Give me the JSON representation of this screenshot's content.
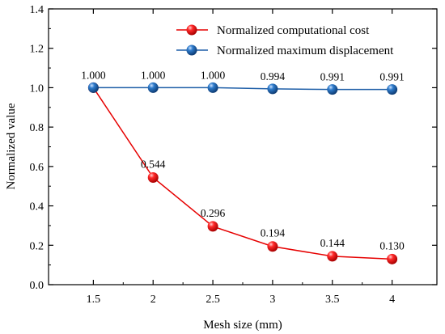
{
  "chart_data": {
    "type": "line",
    "xlabel": "Mesh size (mm)",
    "ylabel": "Normalized value",
    "xlim": [
      1.125,
      4.375
    ],
    "ylim": [
      0,
      1.4
    ],
    "xticks": [
      1.5,
      2,
      2.5,
      3,
      3.5,
      4
    ],
    "xtick_labels": [
      "1.5",
      "2",
      "2.5",
      "3",
      "3.5",
      "4"
    ],
    "yticks": [
      0,
      0.2,
      0.4,
      0.6,
      0.8,
      1.0,
      1.2,
      1.4
    ],
    "ytick_labels": [
      "0.0",
      "0.2",
      "0.4",
      "0.6",
      "0.8",
      "1.0",
      "1.2",
      "1.4"
    ],
    "legend_position": "top-right",
    "grid": false,
    "series": [
      {
        "name": "Normalized computational cost",
        "color": "#e60000",
        "marker_color": "#ff1a1a",
        "x": [
          1.5,
          2,
          2.5,
          3,
          3.5,
          4
        ],
        "values": [
          1.0,
          0.544,
          0.296,
          0.194,
          0.144,
          0.13
        ],
        "labels": [
          "0.544",
          "0.296",
          "0.194",
          "0.144",
          "0.130"
        ]
      },
      {
        "name": "Normalized maximum displacement",
        "color": "#1f5fa8",
        "marker_color": "#2a6fb8",
        "x": [
          1.5,
          2,
          2.5,
          3,
          3.5,
          4
        ],
        "values": [
          1.0,
          1.0,
          1.0,
          0.994,
          0.991,
          0.991
        ],
        "labels": [
          "1.000",
          "1.000",
          "1.000",
          "0.994",
          "0.991",
          "0.991"
        ]
      }
    ]
  }
}
